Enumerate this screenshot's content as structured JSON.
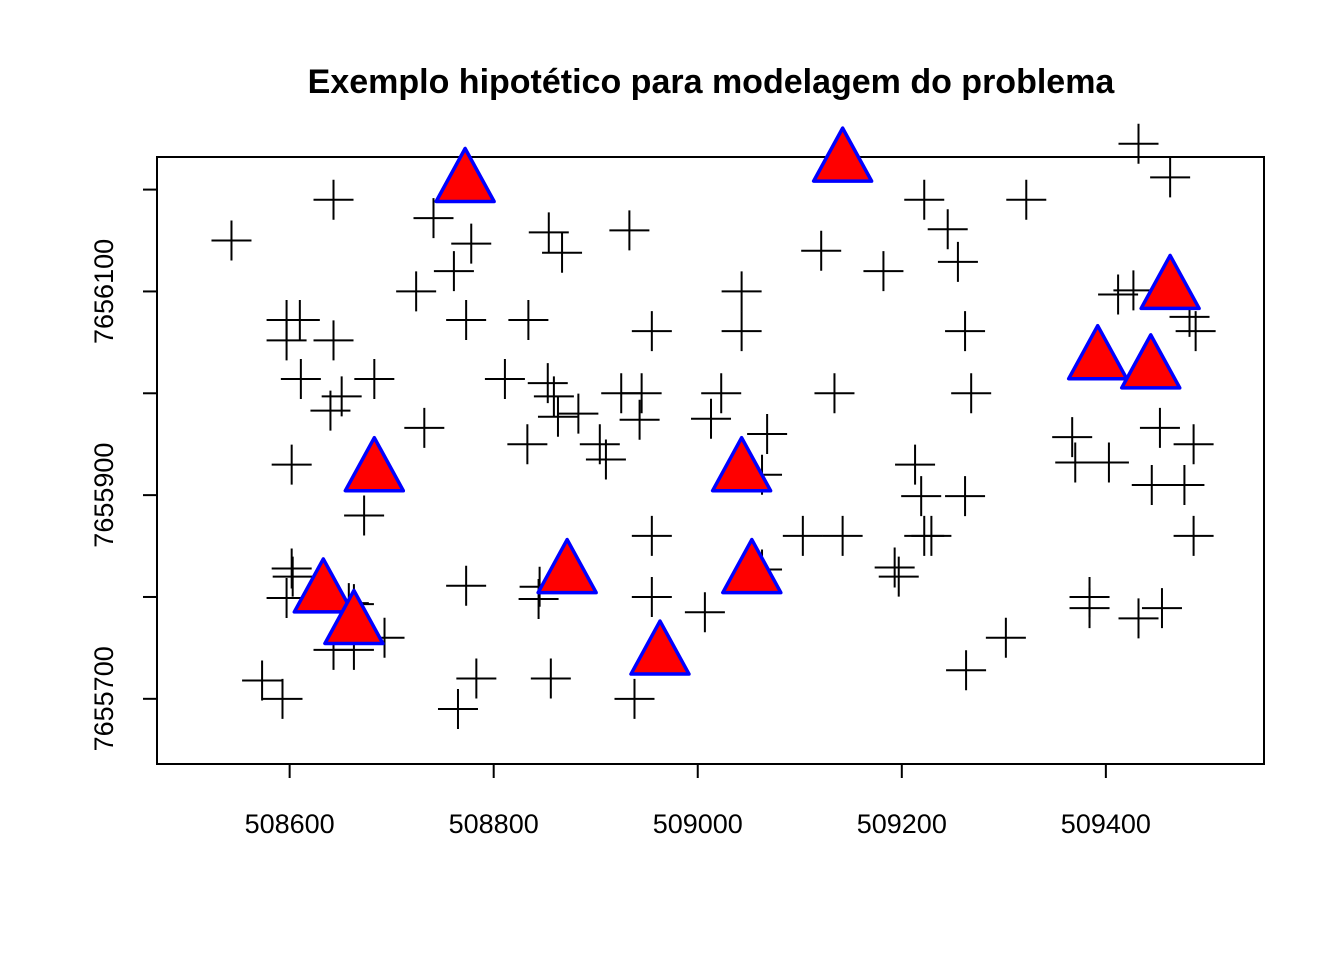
{
  "chart_data": {
    "type": "scatter",
    "title": "Exemplo hipotético para modelagem do problema",
    "xlabel": "",
    "ylabel": "",
    "xlim": [
      508470,
      509555
    ],
    "ylim": [
      7655636,
      7656232
    ],
    "x_ticks": [
      508600,
      508800,
      509000,
      509200,
      509400
    ],
    "x_tick_labels": [
      "508600",
      "508800",
      "509000",
      "509200",
      "509400"
    ],
    "y_ticks": [
      7655700,
      7655800,
      7655900,
      7656000,
      7656100,
      7656200
    ],
    "y_tick_labels": [
      "7655700",
      "",
      "7655900",
      "",
      "7656100",
      ""
    ],
    "grid": false,
    "series": [
      {
        "marker": "plus",
        "color": "#000000",
        "points": [
          [
            508543,
            7656150
          ],
          [
            508643,
            7656190
          ],
          [
            508741,
            7656172
          ],
          [
            508778,
            7656147
          ],
          [
            508854,
            7656158
          ],
          [
            508867,
            7656138
          ],
          [
            508933,
            7656160
          ],
          [
            509043,
            7656100
          ],
          [
            509121,
            7656140
          ],
          [
            509182,
            7656120
          ],
          [
            509222,
            7656190
          ],
          [
            509245,
            7656161
          ],
          [
            509255,
            7656129
          ],
          [
            509322,
            7656190
          ],
          [
            509432,
            7656245
          ],
          [
            509463,
            7656212
          ],
          [
            508724,
            7656100
          ],
          [
            508761,
            7656120
          ],
          [
            508773,
            7656072
          ],
          [
            508834,
            7656072
          ],
          [
            508955,
            7656061
          ],
          [
            509043,
            7656061
          ],
          [
            509262,
            7656061
          ],
          [
            508597,
            7656072
          ],
          [
            508610,
            7656072
          ],
          [
            508597,
            7656052
          ],
          [
            508643,
            7656052
          ],
          [
            508611,
            7656014
          ],
          [
            508651,
            7655997
          ],
          [
            508683,
            7656014
          ],
          [
            508640,
            7655983
          ],
          [
            508811,
            7656014
          ],
          [
            508853,
            7656010
          ],
          [
            508859,
            7655997
          ],
          [
            508925,
            7656000
          ],
          [
            508945,
            7656000
          ],
          [
            509023,
            7656000
          ],
          [
            509134,
            7656000
          ],
          [
            509268,
            7656000
          ],
          [
            508732,
            7655966
          ],
          [
            508863,
            7655977
          ],
          [
            508883,
            7655980
          ],
          [
            508943,
            7655974
          ],
          [
            509013,
            7655975
          ],
          [
            509068,
            7655960
          ],
          [
            508602,
            7655930
          ],
          [
            508833,
            7655950
          ],
          [
            508904,
            7655950
          ],
          [
            508910,
            7655935
          ],
          [
            509063,
            7655920
          ],
          [
            509213,
            7655930
          ],
          [
            509219,
            7655899
          ],
          [
            509262,
            7655899
          ],
          [
            509367,
            7655957
          ],
          [
            509370,
            7655932
          ],
          [
            509403,
            7655932
          ],
          [
            509453,
            7655966
          ],
          [
            509486,
            7655950
          ],
          [
            509445,
            7655910
          ],
          [
            509477,
            7655910
          ],
          [
            509412,
            7656097
          ],
          [
            509427,
            7656101
          ],
          [
            509482,
            7656075
          ],
          [
            509488,
            7656061
          ],
          [
            508673,
            7655880
          ],
          [
            508955,
            7655860
          ],
          [
            509103,
            7655860
          ],
          [
            509142,
            7655860
          ],
          [
            509222,
            7655860
          ],
          [
            509229,
            7655860
          ],
          [
            509486,
            7655860
          ],
          [
            508603,
            7655820
          ],
          [
            508602,
            7655828
          ],
          [
            508597,
            7655799
          ],
          [
            508663,
            7655793
          ],
          [
            508658,
            7655794
          ],
          [
            508773,
            7655811
          ],
          [
            508845,
            7655810
          ],
          [
            508844,
            7655798
          ],
          [
            508955,
            7655800
          ],
          [
            509007,
            7655785
          ],
          [
            509063,
            7655827
          ],
          [
            509193,
            7655829
          ],
          [
            509197,
            7655820
          ],
          [
            509384,
            7655800
          ],
          [
            509384,
            7655789
          ],
          [
            509432,
            7655779
          ],
          [
            509455,
            7655789
          ],
          [
            508643,
            7655748
          ],
          [
            508663,
            7655748
          ],
          [
            508693,
            7655760
          ],
          [
            508573,
            7655718
          ],
          [
            508593,
            7655700
          ],
          [
            508765,
            7655690
          ],
          [
            508783,
            7655720
          ],
          [
            508856,
            7655720
          ],
          [
            508938,
            7655700
          ],
          [
            509302,
            7655760
          ],
          [
            509263,
            7655728
          ]
        ]
      },
      {
        "marker": "triangle",
        "fill": "#ff0000",
        "stroke": "#0000ff",
        "points": [
          [
            508772,
            7656206
          ],
          [
            509142,
            7656226
          ],
          [
            509463,
            7656101
          ],
          [
            509392,
            7656032
          ],
          [
            509444,
            7656023
          ],
          [
            508683,
            7655922
          ],
          [
            509043,
            7655922
          ],
          [
            508872,
            7655822
          ],
          [
            509053,
            7655822
          ],
          [
            508633,
            7655803
          ],
          [
            508663,
            7655772
          ],
          [
            508963,
            7655742
          ]
        ]
      }
    ]
  }
}
